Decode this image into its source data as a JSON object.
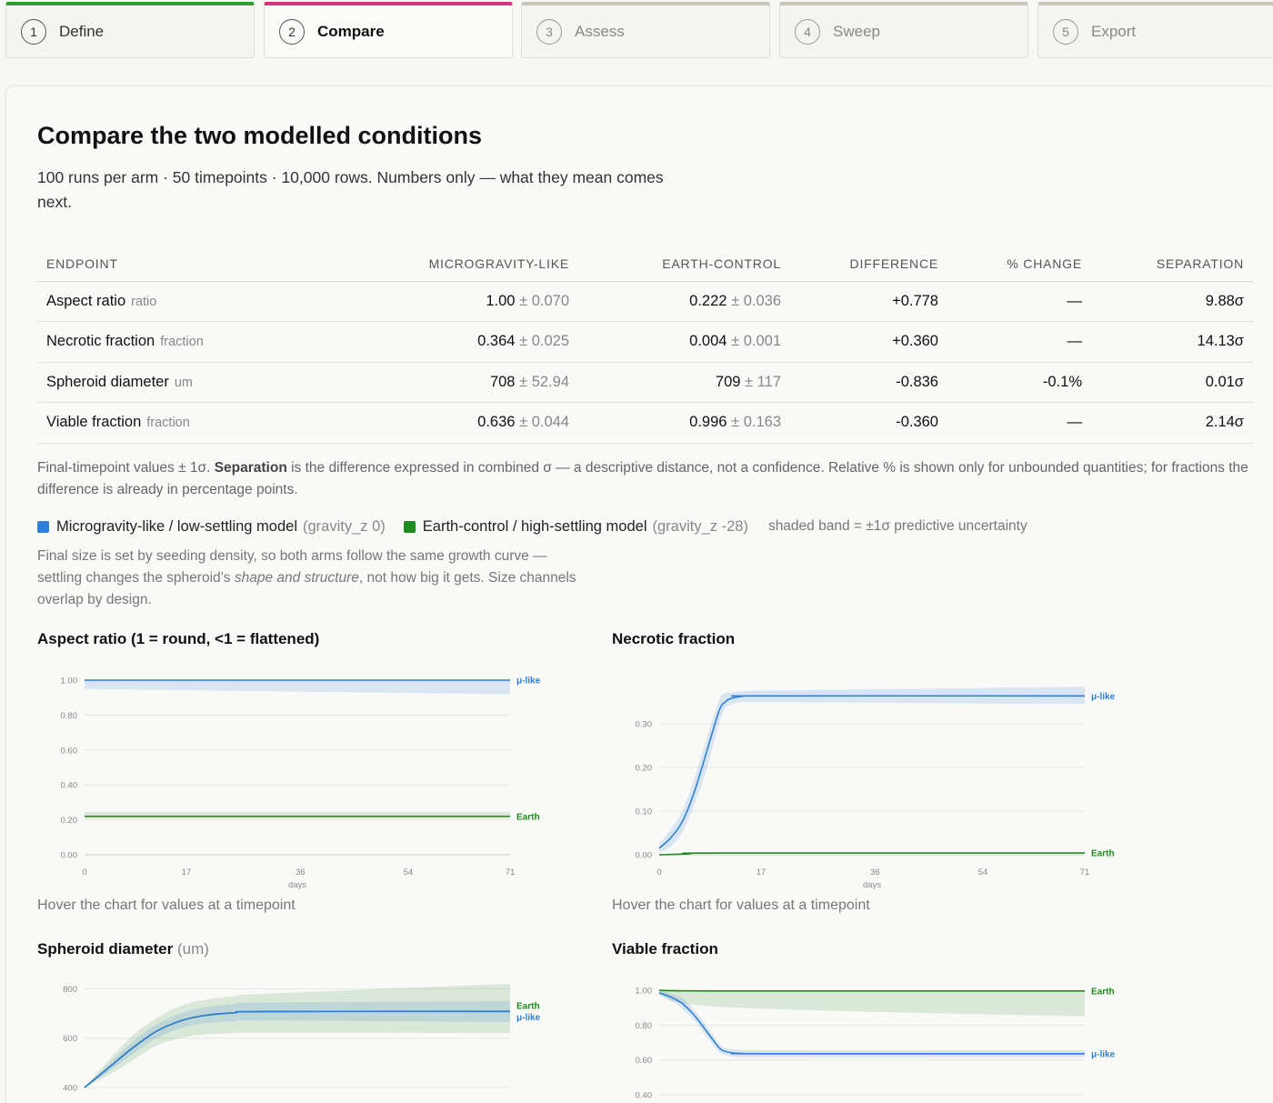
{
  "steps": [
    {
      "num": "1",
      "label": "Define",
      "state": "done"
    },
    {
      "num": "2",
      "label": "Compare",
      "state": "active"
    },
    {
      "num": "3",
      "label": "Assess",
      "state": "todo"
    },
    {
      "num": "4",
      "label": "Sweep",
      "state": "todo"
    },
    {
      "num": "5",
      "label": "Export",
      "state": "todo"
    }
  ],
  "page": {
    "title": "Compare the two modelled conditions",
    "subtitle": "100 runs per arm · 50 timepoints · 10,000 rows. Numbers only — what they mean comes next."
  },
  "table": {
    "headers": [
      "ENDPOINT",
      "MICROGRAVITY-LIKE",
      "EARTH-CONTROL",
      "DIFFERENCE",
      "% CHANGE",
      "SEPARATION"
    ],
    "rows": [
      {
        "endpoint": "Aspect ratio",
        "unit": "ratio",
        "micro": "1.00",
        "micro_sd": "± 0.070",
        "earth": "0.222",
        "earth_sd": "± 0.036",
        "diff": "+0.778",
        "pct": "—",
        "sep": "9.88σ"
      },
      {
        "endpoint": "Necrotic fraction",
        "unit": "fraction",
        "micro": "0.364",
        "micro_sd": "± 0.025",
        "earth": "0.004",
        "earth_sd": "± 0.001",
        "diff": "+0.360",
        "pct": "—",
        "sep": "14.13σ"
      },
      {
        "endpoint": "Spheroid diameter",
        "unit": "um",
        "micro": "708",
        "micro_sd": "± 52.94",
        "earth": "709",
        "earth_sd": "± 117",
        "diff": "-0.836",
        "pct": "-0.1%",
        "sep": "0.01σ"
      },
      {
        "endpoint": "Viable fraction",
        "unit": "fraction",
        "micro": "0.636",
        "micro_sd": "± 0.044",
        "earth": "0.996",
        "earth_sd": "± 0.163",
        "diff": "-0.360",
        "pct": "—",
        "sep": "2.14σ"
      }
    ]
  },
  "note": {
    "p1": "Final-timepoint values ± 1σ. ",
    "bold": "Separation",
    "p2": " is the difference expressed in combined σ — a descriptive distance, not a confidence. Relative % is shown only for unbounded quantities; for fractions the difference is already in percentage points."
  },
  "legend": {
    "micro_label": "Microgravity-like / low-settling model",
    "micro_param": "(gravity_z 0)",
    "earth_label": "Earth-control / high-settling model",
    "earth_param": "(gravity_z -28)",
    "band_note": "shaded band = ±1σ predictive uncertainty",
    "micro_color": "#2f7fd6",
    "earth_color": "#1f8a1f"
  },
  "size_note": {
    "p1": "Final size is set by seeding density, so both arms follow the same growth curve — settling changes the spheroid’s ",
    "em": "shape and structure",
    "p2": ", not how big it gets. Size channels overlap by design."
  },
  "hover_hint": "Hover the chart for values at a timepoint",
  "chart_data": [
    {
      "type": "line",
      "title": "Aspect ratio (1 = round, <1 = flattened)",
      "xlabel": "days",
      "x_ticks": [
        "0",
        "17",
        "36",
        "54",
        "71"
      ],
      "y_ticks": [
        "0.00",
        "0.20",
        "0.40",
        "0.60",
        "0.80",
        "1.00"
      ],
      "xlim": [
        0,
        71
      ],
      "ylim": [
        0,
        1.0
      ],
      "series": [
        {
          "name": "μ-like",
          "x": [
            0,
            71
          ],
          "y": [
            1.0,
            1.0
          ],
          "lo": [
            0.95,
            0.92
          ],
          "hi": [
            1.0,
            1.0
          ]
        },
        {
          "name": "Earth",
          "x": [
            0,
            71
          ],
          "y": [
            0.22,
            0.22
          ],
          "lo": [
            0.21,
            0.21
          ],
          "hi": [
            0.245,
            0.245
          ]
        }
      ]
    },
    {
      "type": "line",
      "title": "Necrotic fraction",
      "xlabel": "days",
      "x_ticks": [
        "0",
        "17",
        "36",
        "54",
        "71"
      ],
      "y_ticks": [
        "0.00",
        "0.10",
        "0.20",
        "0.30"
      ],
      "xlim": [
        0,
        71
      ],
      "ylim": [
        0,
        0.4
      ],
      "series": [
        {
          "name": "μ-like",
          "x": [
            0,
            2,
            4,
            6,
            8,
            10,
            11,
            12,
            14,
            17,
            71
          ],
          "y": [
            0.015,
            0.04,
            0.08,
            0.15,
            0.24,
            0.33,
            0.35,
            0.358,
            0.363,
            0.364,
            0.364
          ],
          "lo": [
            0.005,
            0.02,
            0.055,
            0.12,
            0.2,
            0.3,
            0.335,
            0.345,
            0.35,
            0.35,
            0.345
          ],
          "hi": [
            0.025,
            0.06,
            0.105,
            0.18,
            0.27,
            0.355,
            0.37,
            0.372,
            0.375,
            0.376,
            0.385
          ]
        },
        {
          "name": "Earth",
          "x": [
            0,
            5,
            10,
            71
          ],
          "y": [
            0.0,
            0.002,
            0.004,
            0.004
          ],
          "lo": [
            0.0,
            0.001,
            0.003,
            0.003
          ],
          "hi": [
            0.001,
            0.003,
            0.005,
            0.005
          ]
        }
      ]
    },
    {
      "type": "line",
      "title": "Spheroid diameter",
      "unit": "(um)",
      "y_ticks": [
        "400",
        "600",
        "800"
      ],
      "xlim": [
        0,
        71
      ],
      "ylim": [
        400,
        820
      ],
      "series": [
        {
          "name": "Earth",
          "x": [
            0,
            4,
            8,
            12,
            16,
            20,
            25,
            30,
            71
          ],
          "y": [
            400,
            480,
            560,
            628,
            670,
            692,
            703,
            708,
            709
          ],
          "lo": [
            400,
            450,
            510,
            570,
            600,
            615,
            620,
            623,
            620
          ],
          "hi": [
            400,
            510,
            610,
            680,
            730,
            755,
            770,
            780,
            820
          ]
        },
        {
          "name": "μ-like",
          "x": [
            0,
            4,
            8,
            12,
            16,
            20,
            25,
            30,
            71
          ],
          "y": [
            400,
            480,
            560,
            628,
            670,
            692,
            703,
            708,
            708
          ],
          "lo": [
            400,
            465,
            535,
            600,
            640,
            660,
            668,
            672,
            665
          ],
          "hi": [
            400,
            495,
            585,
            655,
            700,
            725,
            738,
            744,
            750
          ]
        }
      ]
    },
    {
      "type": "line",
      "title": "Viable fraction",
      "y_ticks": [
        "0.40",
        "0.60",
        "0.80",
        "1.00"
      ],
      "xlim": [
        0,
        71
      ],
      "ylim": [
        0.4,
        1.0
      ],
      "series": [
        {
          "name": "Earth",
          "x": [
            0,
            10,
            71
          ],
          "y": [
            1.0,
            0.996,
            0.996
          ],
          "lo": [
            0.99,
            0.905,
            0.85
          ],
          "hi": [
            1.0,
            1.0,
            1.0
          ]
        },
        {
          "name": "μ-like",
          "x": [
            0,
            2,
            4,
            6,
            8,
            10,
            11,
            12,
            14,
            17,
            71
          ],
          "y": [
            0.985,
            0.96,
            0.92,
            0.85,
            0.76,
            0.67,
            0.65,
            0.642,
            0.637,
            0.636,
            0.636
          ],
          "lo": [
            0.97,
            0.94,
            0.89,
            0.82,
            0.73,
            0.645,
            0.628,
            0.62,
            0.617,
            0.615,
            0.615
          ],
          "hi": [
            1.0,
            0.98,
            0.95,
            0.88,
            0.79,
            0.695,
            0.67,
            0.662,
            0.657,
            0.656,
            0.656
          ]
        }
      ]
    }
  ]
}
